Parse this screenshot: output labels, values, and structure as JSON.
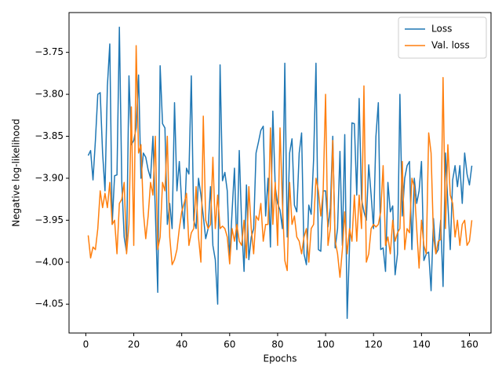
{
  "chart_data": {
    "type": "line",
    "x_label": "Epochs",
    "y_label": "Negative log-likelihood",
    "x": [
      1,
      2,
      3,
      4,
      5,
      6,
      7,
      8,
      9,
      10,
      11,
      12,
      13,
      14,
      15,
      16,
      17,
      18,
      19,
      20,
      21,
      22,
      23,
      24,
      25,
      26,
      27,
      28,
      29,
      30,
      31,
      32,
      33,
      34,
      35,
      36,
      37,
      38,
      39,
      40,
      41,
      42,
      43,
      44,
      45,
      46,
      47,
      48,
      49,
      50,
      51,
      52,
      53,
      54,
      55,
      56,
      57,
      58,
      59,
      60,
      61,
      62,
      63,
      64,
      65,
      66,
      67,
      68,
      69,
      70,
      71,
      72,
      73,
      74,
      75,
      76,
      77,
      78,
      79,
      80,
      81,
      82,
      83,
      84,
      85,
      86,
      87,
      88,
      89,
      90,
      91,
      92,
      93,
      94,
      95,
      96,
      97,
      98,
      99,
      100,
      101,
      102,
      103,
      104,
      105,
      106,
      107,
      108,
      109,
      110,
      111,
      112,
      113,
      114,
      115,
      116,
      117,
      118,
      119,
      120,
      121,
      122,
      123,
      124,
      125,
      126,
      127,
      128,
      129,
      130,
      131,
      132,
      133,
      134,
      135,
      136,
      137,
      138,
      139,
      140,
      141,
      142,
      143,
      144,
      145,
      146,
      147,
      148,
      149,
      150,
      151,
      152,
      153,
      154,
      155,
      156,
      157,
      158,
      159,
      160,
      161
    ],
    "series": [
      {
        "name": "Loss",
        "color": "#1f77b4",
        "values": [
          -3.873,
          -3.867,
          -3.902,
          -3.855,
          -3.8,
          -3.798,
          -3.87,
          -3.915,
          -3.79,
          -3.74,
          -3.955,
          -3.897,
          -3.896,
          -3.72,
          -3.905,
          -3.97,
          -3.988,
          -3.778,
          -3.86,
          -3.855,
          -3.84,
          -3.777,
          -3.9,
          -3.87,
          -3.875,
          -3.89,
          -3.9,
          -3.85,
          -3.94,
          -4.036,
          -3.766,
          -3.835,
          -3.84,
          -3.955,
          -3.93,
          -3.96,
          -3.81,
          -3.915,
          -3.88,
          -3.93,
          -3.96,
          -3.888,
          -3.895,
          -3.778,
          -3.95,
          -3.96,
          -3.9,
          -3.92,
          -3.945,
          -3.972,
          -3.96,
          -3.91,
          -3.98,
          -3.997,
          -4.05,
          -3.765,
          -3.903,
          -3.893,
          -3.915,
          -3.997,
          -3.94,
          -3.888,
          -3.985,
          -3.867,
          -3.955,
          -4.011,
          -3.908,
          -3.997,
          -3.97,
          -3.96,
          -3.87,
          -3.857,
          -3.843,
          -3.838,
          -3.945,
          -3.9,
          -3.982,
          -3.82,
          -3.91,
          -3.93,
          -3.938,
          -3.96,
          -3.763,
          -3.97,
          -3.87,
          -3.853,
          -3.932,
          -3.94,
          -3.87,
          -3.846,
          -3.99,
          -4.003,
          -3.932,
          -3.943,
          -3.878,
          -3.763,
          -3.985,
          -3.987,
          -3.915,
          -3.915,
          -3.958,
          -3.935,
          -3.85,
          -3.983,
          -3.96,
          -3.868,
          -3.98,
          -3.848,
          -4.067,
          -3.98,
          -3.834,
          -3.835,
          -3.92,
          -3.805,
          -3.925,
          -3.94,
          -3.95,
          -3.884,
          -3.92,
          -3.96,
          -3.85,
          -3.81,
          -3.985,
          -3.983,
          -4.011,
          -3.905,
          -3.94,
          -3.933,
          -4.015,
          -3.99,
          -3.8,
          -3.945,
          -3.9,
          -3.885,
          -3.88,
          -3.985,
          -3.9,
          -3.93,
          -3.915,
          -3.88,
          -3.998,
          -3.99,
          -3.988,
          -4.034,
          -3.948,
          -3.99,
          -3.985,
          -3.95,
          -4.029,
          -3.87,
          -3.93,
          -3.985,
          -3.902,
          -3.885,
          -3.91,
          -3.885,
          -3.93,
          -3.87,
          -3.895,
          -3.908,
          -3.885
        ]
      },
      {
        "name": "Val. loss",
        "color": "#ff7f0e",
        "values": [
          -3.968,
          -3.995,
          -3.982,
          -3.985,
          -3.96,
          -3.915,
          -3.935,
          -3.918,
          -3.935,
          -3.905,
          -3.955,
          -3.95,
          -3.99,
          -3.93,
          -3.925,
          -3.905,
          -3.99,
          -3.955,
          -3.815,
          -3.98,
          -3.742,
          -3.87,
          -3.86,
          -3.94,
          -3.972,
          -3.945,
          -3.905,
          -3.92,
          -3.85,
          -3.985,
          -3.97,
          -3.905,
          -3.915,
          -3.85,
          -3.97,
          -4.003,
          -3.997,
          -3.985,
          -3.96,
          -3.94,
          -3.93,
          -3.918,
          -3.98,
          -3.965,
          -3.96,
          -3.91,
          -3.97,
          -4.0,
          -3.826,
          -3.95,
          -3.96,
          -3.955,
          -3.875,
          -3.96,
          -3.92,
          -3.96,
          -3.957,
          -3.96,
          -3.97,
          -4.002,
          -3.96,
          -3.975,
          -3.955,
          -3.975,
          -3.98,
          -3.95,
          -3.995,
          -3.91,
          -3.96,
          -3.99,
          -3.945,
          -3.95,
          -3.93,
          -3.975,
          -3.955,
          -3.955,
          -3.84,
          -3.955,
          -3.905,
          -3.98,
          -3.84,
          -3.93,
          -3.998,
          -4.01,
          -3.905,
          -3.955,
          -3.945,
          -3.97,
          -3.975,
          -3.99,
          -3.97,
          -3.96,
          -4.0,
          -3.96,
          -3.955,
          -3.9,
          -3.915,
          -3.945,
          -3.915,
          -3.8,
          -3.98,
          -3.96,
          -3.855,
          -3.975,
          -3.99,
          -4.018,
          -3.985,
          -3.94,
          -3.99,
          -3.96,
          -3.975,
          -3.92,
          -3.975,
          -3.92,
          -3.96,
          -3.79,
          -4.0,
          -3.99,
          -3.96,
          -3.955,
          -3.958,
          -3.955,
          -3.94,
          -3.885,
          -3.98,
          -3.97,
          -3.99,
          -3.95,
          -3.975,
          -3.965,
          -3.96,
          -3.88,
          -3.985,
          -3.96,
          -3.965,
          -3.9,
          -3.91,
          -3.96,
          -4.007,
          -3.95,
          -3.98,
          -3.99,
          -3.846,
          -3.87,
          -3.97,
          -3.99,
          -3.975,
          -3.973,
          -3.78,
          -3.96,
          -3.86,
          -3.92,
          -3.93,
          -3.97,
          -3.95,
          -3.98,
          -3.955,
          -3.95,
          -3.98,
          -3.975,
          -3.95
        ]
      }
    ],
    "xlim": [
      -7,
      169
    ],
    "xticks": [
      0,
      20,
      40,
      60,
      80,
      100,
      120,
      140,
      160
    ],
    "ylim": [
      -4.0844,
      -3.7026
    ],
    "yticks": [
      {
        "value": -4.05,
        "label": "−4.05"
      },
      {
        "value": -4.0,
        "label": "−4.00"
      },
      {
        "value": -3.95,
        "label": "−3.95"
      },
      {
        "value": -3.9,
        "label": "−3.90"
      },
      {
        "value": -3.85,
        "label": "−3.85"
      },
      {
        "value": -3.8,
        "label": "−3.80"
      },
      {
        "value": -3.75,
        "label": "−3.75"
      }
    ],
    "legend": "upper right",
    "grid": false
  }
}
